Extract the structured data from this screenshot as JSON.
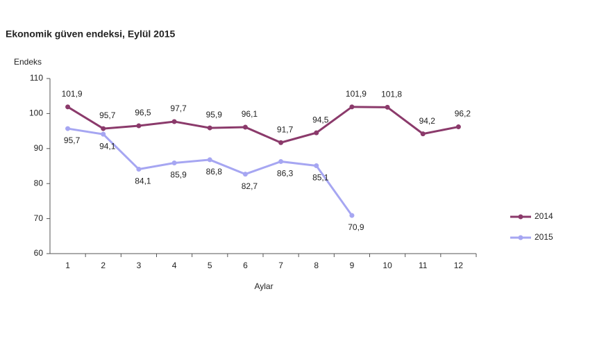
{
  "chart_data": {
    "type": "line",
    "title": "Ekonomik güven endeksi, Eylül 2015",
    "y_label": "Endeks",
    "x_label": "Aylar",
    "categories": [
      "1",
      "2",
      "3",
      "4",
      "5",
      "6",
      "7",
      "8",
      "9",
      "10",
      "11",
      "12"
    ],
    "series": [
      {
        "name": "2014",
        "color": "#8b3a6b",
        "values": [
          101.9,
          95.7,
          96.5,
          97.7,
          95.9,
          96.1,
          91.7,
          94.5,
          101.9,
          101.8,
          94.2,
          96.2
        ],
        "value_labels": [
          "101,9",
          "95,7",
          "96,5",
          "97,7",
          "95,9",
          "96,1",
          "91,7",
          "94,5",
          "101,9",
          "101,8",
          "94,2",
          "96,2"
        ]
      },
      {
        "name": "2015",
        "color": "#a6a6f2",
        "values": [
          95.7,
          94.1,
          84.1,
          85.9,
          86.8,
          82.7,
          86.3,
          85.1,
          70.9,
          null,
          null,
          null
        ],
        "value_labels": [
          "95,7",
          "94,1",
          "84,1",
          "85,9",
          "86,8",
          "82,7",
          "86,3",
          "85,1",
          "70,9",
          null,
          null,
          null
        ]
      }
    ],
    "ylim": [
      60,
      110
    ],
    "yticks": [
      60,
      70,
      80,
      90,
      100,
      110
    ],
    "grid": false,
    "legend": "right"
  }
}
